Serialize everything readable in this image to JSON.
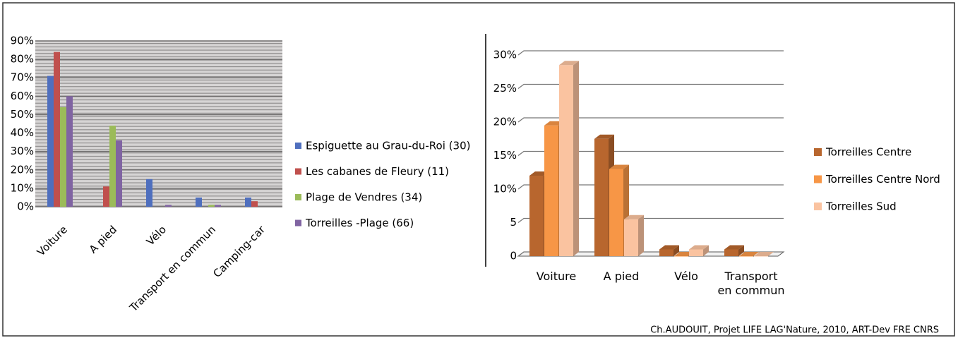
{
  "chart_data": [
    {
      "type": "bar",
      "categories": [
        "Voiture",
        "A pied",
        "Vélo",
        "Transport en commun",
        "Camping-car"
      ],
      "series": [
        {
          "name": "Espiguette au Grau-du-Roi (30)",
          "color": "#4f6fbe",
          "values": [
            71,
            0,
            15,
            5,
            5
          ]
        },
        {
          "name": "Les cabanes de Fleury (11)",
          "color": "#c0504d",
          "values": [
            84,
            11,
            0,
            0,
            3
          ]
        },
        {
          "name": "Plage de Vendres (34)",
          "color": "#9bbb59",
          "values": [
            54,
            44,
            0,
            1,
            0
          ]
        },
        {
          "name": "Torreilles -Plage (66)",
          "color": "#8064a2",
          "values": [
            60,
            36,
            1,
            1,
            0
          ]
        }
      ],
      "ylim": [
        0,
        90
      ],
      "yticks": [
        {
          "value": 0,
          "label": "0%"
        },
        {
          "value": 10,
          "label": "10%"
        },
        {
          "value": 20,
          "label": "20%"
        },
        {
          "value": 30,
          "label": "30%"
        },
        {
          "value": 40,
          "label": "40%"
        },
        {
          "value": 50,
          "label": "50%"
        },
        {
          "value": 60,
          "label": "60%"
        },
        {
          "value": 70,
          "label": "70%"
        },
        {
          "value": 80,
          "label": "80%"
        },
        {
          "value": 90,
          "label": "90%"
        }
      ],
      "grid": true,
      "legend": "right"
    },
    {
      "type": "bar3d",
      "categories": [
        "Voiture",
        "A pied",
        "Vélo",
        "Transport en commun"
      ],
      "series": [
        {
          "name": "Torreilles Centre",
          "color": "#b8662e",
          "values": [
            12,
            17.5,
            1,
            1
          ]
        },
        {
          "name": "Torreilles Centre Nord",
          "color": "#f79646",
          "values": [
            19.5,
            13,
            0,
            0
          ]
        },
        {
          "name": "Torreilles Sud",
          "color": "#fac3a0",
          "values": [
            28.5,
            5.5,
            1,
            0
          ]
        }
      ],
      "ylim": [
        0,
        30
      ],
      "yticks": [
        0,
        5,
        {
          "value": 10,
          "label": "10%"
        },
        {
          "value": 15,
          "label": "15%"
        },
        {
          "value": 20,
          "label": "20%"
        },
        {
          "value": 25,
          "label": "25%"
        },
        {
          "value": 30,
          "label": "30%"
        }
      ],
      "grid": true,
      "legend": "right"
    }
  ],
  "credit": "Ch.AUDOUIT, Projet LIFE LAG'Nature, 2010, ART-Dev FRE CNRS"
}
